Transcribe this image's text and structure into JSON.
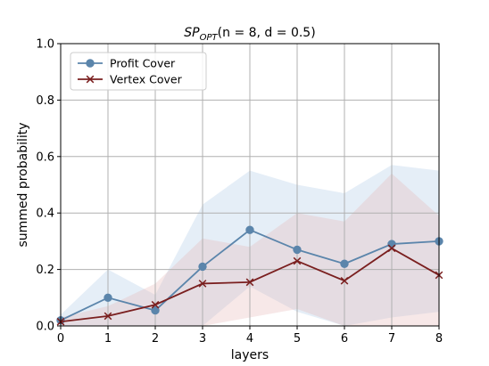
{
  "chart_data": {
    "type": "line",
    "title_main": "SP",
    "title_sub": "OPT",
    "title_rest": "(n = 8, d = 0.5)",
    "xlabel": "layers",
    "ylabel": "summed probability",
    "x": [
      0,
      1,
      2,
      3,
      4,
      5,
      6,
      7,
      8
    ],
    "xlim": [
      0,
      8
    ],
    "ylim": [
      0,
      1.0
    ],
    "xticks": [
      "0",
      "1",
      "2",
      "3",
      "4",
      "5",
      "6",
      "7",
      "8"
    ],
    "yticks": [
      "0.0",
      "0.2",
      "0.4",
      "0.6",
      "0.8",
      "1.0"
    ],
    "grid": true,
    "legend_position": "top-left",
    "series": [
      {
        "name": "Profit Cover",
        "color": "#5b85ab",
        "marker": "circle",
        "values": [
          0.02,
          0.1,
          0.055,
          0.21,
          0.34,
          0.27,
          0.22,
          0.29,
          0.3
        ],
        "band_low": [
          0.0,
          0.0,
          0.0,
          0.0,
          0.14,
          0.05,
          0.0,
          0.03,
          0.05
        ],
        "band_high": [
          0.04,
          0.2,
          0.11,
          0.43,
          0.55,
          0.5,
          0.47,
          0.57,
          0.55
        ]
      },
      {
        "name": "Vertex Cover",
        "color": "#7a1f1f",
        "marker": "x",
        "values": [
          0.015,
          0.035,
          0.075,
          0.15,
          0.155,
          0.23,
          0.16,
          0.275,
          0.18
        ],
        "band_low": [
          0.0,
          0.0,
          0.0,
          0.0,
          0.03,
          0.06,
          0.0,
          0.0,
          0.0
        ],
        "band_high": [
          0.03,
          0.07,
          0.15,
          0.31,
          0.28,
          0.4,
          0.37,
          0.54,
          0.39
        ]
      }
    ]
  }
}
